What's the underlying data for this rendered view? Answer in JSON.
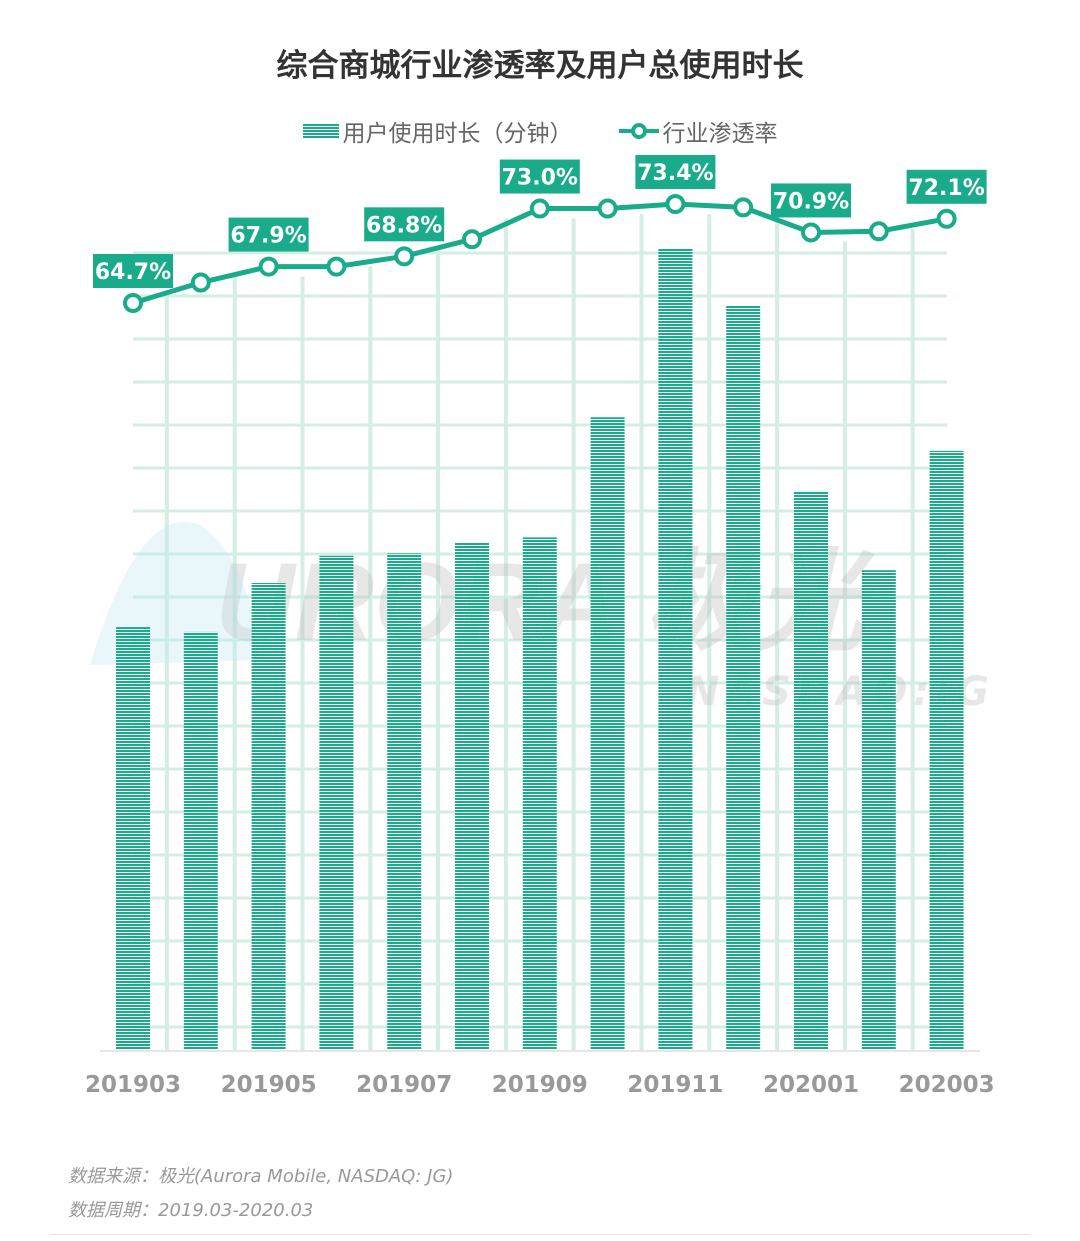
{
  "chart_data": {
    "type": "bar+line",
    "title": "综合商城行业渗透率及用户总使用时长",
    "categories": [
      "201903",
      "201904",
      "201905",
      "201906",
      "201907",
      "201908",
      "201909",
      "201910",
      "201911",
      "201912",
      "202001",
      "202002",
      "202003"
    ],
    "x_tick_labels": [
      "201903",
      "201905",
      "201907",
      "201909",
      "201911",
      "202001",
      "202003"
    ],
    "series": [
      {
        "name": "用户使用时长（分钟）",
        "type": "bar",
        "value_scale": "relative (no axis printed; max = 100)",
        "values": [
          52.8,
          52.2,
          58.3,
          61.7,
          62.0,
          63.4,
          64.0,
          79.0,
          100,
          92.9,
          69.8,
          59.9,
          74.8
        ]
      },
      {
        "name": "行业渗透率",
        "type": "line",
        "unit": "%",
        "values": [
          64.7,
          66.5,
          67.9,
          67.9,
          68.8,
          70.3,
          73.0,
          73.0,
          73.4,
          73.1,
          70.9,
          71.0,
          72.1
        ],
        "data_labels": [
          "64.7%",
          null,
          "67.9%",
          null,
          "68.8%",
          null,
          "73.0%",
          null,
          "73.4%",
          null,
          "70.9%",
          null,
          "72.1%"
        ]
      }
    ],
    "grid": true,
    "legend_position": "top-center",
    "colors": {
      "accent": "#1aab8a",
      "grid": "#d3eee3",
      "tick_text": "#999999"
    }
  },
  "watermark": {
    "text": "URORA 极光",
    "sub": "NASDAQ:JG"
  },
  "footer": {
    "source": "数据来源：极光(Aurora Mobile, NASDAQ: JG)",
    "period": "数据周期：2019.03-2020.03"
  }
}
